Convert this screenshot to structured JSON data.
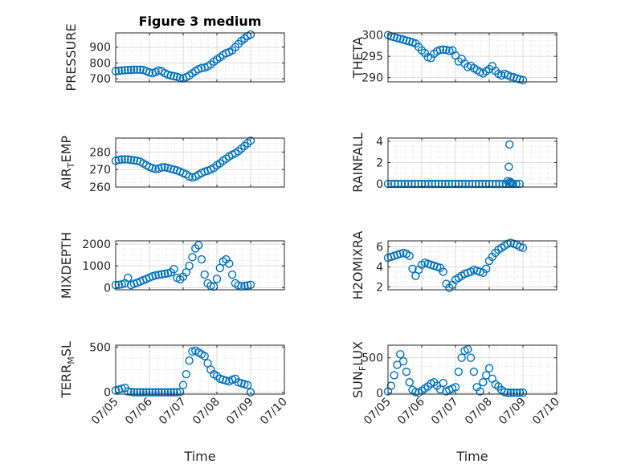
{
  "figure": {
    "title": "Figure 3 medium",
    "marker_color": "#0072bd"
  },
  "chart_data": [
    {
      "id": "pressure",
      "type": "scatter",
      "title": "Figure 3 medium",
      "ylabel": "PRESSURE",
      "ylim": [
        680,
        990
      ],
      "yticks": [
        700,
        800,
        900
      ],
      "ytick_labels": [
        "700",
        "800",
        "900"
      ],
      "xlim": [
        0,
        5
      ],
      "xticks": [
        0,
        1,
        2,
        3,
        4,
        5
      ],
      "xlabel": "",
      "y": [
        748,
        750,
        752,
        754,
        755,
        756,
        757,
        757,
        757,
        756,
        748,
        740,
        735,
        742,
        752,
        748,
        735,
        726,
        720,
        716,
        712,
        705,
        702,
        710,
        720,
        735,
        748,
        760,
        768,
        770,
        778,
        790,
        808,
        822,
        835,
        850,
        862,
        868,
        880,
        900,
        920,
        940,
        955,
        970,
        980
      ]
    },
    {
      "id": "theta",
      "type": "scatter",
      "ylabel": "THETA",
      "ylim": [
        289,
        300.5
      ],
      "yticks": [
        290,
        295,
        300
      ],
      "ytick_labels": [
        "290",
        "295",
        "300"
      ],
      "xlim": [
        0,
        5
      ],
      "xticks": [
        0,
        1,
        2,
        3,
        4,
        5
      ],
      "xlabel": "",
      "y": [
        300,
        299.7,
        299.5,
        299.3,
        299.1,
        298.9,
        298.7,
        298.5,
        298.3,
        298,
        297.2,
        296.4,
        295.8,
        294.8,
        294.6,
        295.6,
        296.2,
        296.5,
        296.6,
        296.5,
        296.3,
        296.4,
        295.2,
        293.8,
        294.4,
        293.3,
        292.5,
        292.8,
        292.2,
        291.8,
        291.3,
        291,
        291.5,
        292,
        292.7,
        291.6,
        290.9,
        290.5,
        290.9,
        290.6,
        290.2,
        290.1,
        289.8,
        289.6,
        289.4
      ]
    },
    {
      "id": "air_temp",
      "type": "scatter",
      "ylabel": "AIR_TEMP",
      "ylim": [
        260,
        288
      ],
      "yticks": [
        260,
        270,
        280
      ],
      "ytick_labels": [
        "260",
        "270",
        "280"
      ],
      "xlim": [
        0,
        5
      ],
      "xticks": [
        0,
        1,
        2,
        3,
        4,
        5
      ],
      "xlabel": "",
      "y": [
        275,
        275.5,
        275.8,
        275.8,
        275.8,
        275.5,
        275.3,
        275,
        274.5,
        273.5,
        272.5,
        271.5,
        270.8,
        270.3,
        270.5,
        271.2,
        271.3,
        271,
        270.4,
        270,
        269.5,
        268.8,
        268,
        267.2,
        266,
        265.5,
        266,
        267,
        268,
        268.8,
        269.3,
        270,
        271,
        272.5,
        273.5,
        275,
        276.2,
        277.5,
        278.5,
        279.3,
        280.5,
        282,
        283.5,
        285,
        286.5
      ]
    },
    {
      "id": "rainfall",
      "type": "scatter",
      "ylabel": "RAINFALL",
      "ylim": [
        -0.3,
        4.3
      ],
      "yticks": [
        0,
        2,
        4
      ],
      "ytick_labels": [
        "0",
        "2",
        "4"
      ],
      "xlim": [
        0,
        5
      ],
      "xticks": [
        0,
        1,
        2,
        3,
        4,
        5
      ],
      "xlabel": "",
      "x": [
        0,
        0.1,
        0.2,
        0.3,
        0.4,
        0.5,
        0.6,
        0.7,
        0.8,
        0.9,
        1,
        1.1,
        1.2,
        1.3,
        1.4,
        1.5,
        1.6,
        1.7,
        1.8,
        1.9,
        2,
        2.1,
        2.2,
        2.3,
        2.4,
        2.5,
        2.6,
        2.7,
        2.8,
        2.9,
        3,
        3.1,
        3.2,
        3.3,
        3.4,
        3.5,
        3.6,
        3.7,
        3.8,
        3.9,
        3.55,
        3.58,
        3.6,
        3.62,
        3.65,
        3.68
      ],
      "y": [
        0,
        0,
        0,
        0,
        0,
        0,
        0,
        0,
        0,
        0,
        0,
        0,
        0,
        0,
        0,
        0,
        0,
        0,
        0,
        0,
        0,
        0,
        0,
        0,
        0,
        0,
        0,
        0,
        0,
        0,
        0,
        0,
        0,
        0,
        0,
        0,
        0,
        0,
        0,
        0,
        0.25,
        1.6,
        3.7,
        0.2,
        0.1,
        0
      ]
    },
    {
      "id": "mixdepth",
      "type": "scatter",
      "ylabel": "MIXDEPTH",
      "ylim": [
        -100,
        2150
      ],
      "yticks": [
        0,
        1000,
        2000
      ],
      "ytick_labels": [
        "0",
        "1000",
        "2000"
      ],
      "xlim": [
        0,
        5
      ],
      "xticks": [
        0,
        1,
        2,
        3,
        4,
        5
      ],
      "xlabel": "",
      "y": [
        120,
        130,
        150,
        200,
        450,
        120,
        180,
        220,
        280,
        340,
        400,
        460,
        520,
        560,
        590,
        610,
        640,
        660,
        700,
        850,
        450,
        380,
        500,
        700,
        1000,
        1400,
        1800,
        1950,
        1300,
        600,
        200,
        80,
        50,
        400,
        900,
        1200,
        1300,
        1100,
        600,
        200,
        100,
        60,
        80,
        100,
        130
      ]
    },
    {
      "id": "h2omixra",
      "type": "scatter",
      "ylabel": "H2OMIXRA",
      "ylim": [
        1.7,
        6.6
      ],
      "yticks": [
        2,
        4,
        6
      ],
      "ytick_labels": [
        "2",
        "4",
        "6"
      ],
      "xlim": [
        0,
        5
      ],
      "xticks": [
        0,
        1,
        2,
        3,
        4,
        5
      ],
      "xlabel": "",
      "y": [
        4.9,
        5,
        5.1,
        5.2,
        5.3,
        5.4,
        5.3,
        5.1,
        3.8,
        3.1,
        3.7,
        4.2,
        4.4,
        4.3,
        4.2,
        4.1,
        4,
        3.9,
        3.5,
        2.3,
        1.9,
        2.2,
        2.7,
        2.9,
        3.1,
        3.3,
        3.4,
        3.5,
        3.7,
        3.6,
        3.5,
        3.4,
        3.8,
        4.6,
        5,
        5.4,
        5.7,
        5.9,
        6.1,
        6.3,
        6.4,
        6.3,
        6.2,
        6.0,
        5.9
      ]
    },
    {
      "id": "terr_msl",
      "type": "scatter",
      "ylabel": "TERR_MSL",
      "ylim": [
        -20,
        520
      ],
      "yticks": [
        0,
        500
      ],
      "ytick_labels": [
        "0",
        "500"
      ],
      "xlim": [
        0,
        5
      ],
      "xticks": [
        0,
        1,
        2,
        3,
        4,
        5
      ],
      "xticklabels": [
        "07/05",
        "07/06",
        "07/07",
        "07/08",
        "07/09",
        "07/10"
      ],
      "xlabel": "Time",
      "y": [
        20,
        30,
        40,
        50,
        10,
        5,
        0,
        0,
        0,
        0,
        0,
        0,
        0,
        0,
        0,
        0,
        0,
        0,
        0,
        0,
        0,
        5,
        80,
        200,
        350,
        450,
        460,
        440,
        420,
        400,
        320,
        250,
        200,
        180,
        150,
        140,
        130,
        120,
        140,
        150,
        110,
        100,
        90,
        80,
        0
      ]
    },
    {
      "id": "sun_flux",
      "type": "scatter",
      "ylabel": "SUN_FLUX",
      "ylim": [
        -20,
        680
      ],
      "yticks": [
        0,
        500
      ],
      "ytick_labels": [
        "0",
        "500"
      ],
      "xlim": [
        0,
        5
      ],
      "xticks": [
        0,
        1,
        2,
        3,
        4,
        5
      ],
      "xticklabels": [
        "07/05",
        "07/06",
        "07/07",
        "07/08",
        "07/09",
        "07/10"
      ],
      "xlabel": "Time",
      "y": [
        20,
        100,
        250,
        400,
        550,
        450,
        300,
        150,
        40,
        10,
        0,
        30,
        60,
        90,
        130,
        150,
        100,
        50,
        140,
        20,
        40,
        60,
        80,
        300,
        500,
        600,
        620,
        500,
        300,
        80,
        20,
        150,
        250,
        350,
        200,
        120,
        90,
        40,
        10,
        0,
        0,
        0,
        0,
        0,
        0
      ]
    }
  ]
}
